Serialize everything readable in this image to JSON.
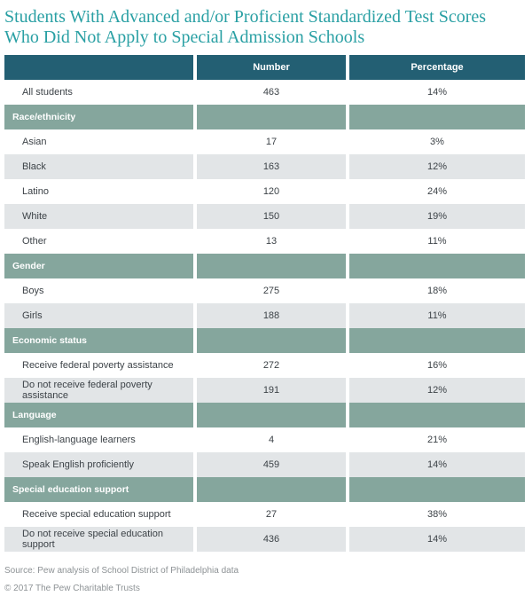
{
  "title_lines": [
    "Students With Advanced and/or Proficient Standardized Test Scores",
    "Who Did Not Apply to Special Admission Schools"
  ],
  "title": "Students With Advanced and/or Proficient Standardized Test Scores Who Did Not Apply to Special Admission Schools",
  "colors": {
    "title_teal": "#2aa0a4",
    "header_bg": "#235f73",
    "section_bg": "#85a69d",
    "alt_row_bg": "#e2e5e7",
    "body_text": "#3c4247",
    "footer_text": "#8d9295"
  },
  "table": {
    "columns": [
      "Number",
      "Percentage"
    ],
    "rows": [
      {
        "type": "data",
        "label": "All students",
        "number": "463",
        "percentage": "14%"
      },
      {
        "type": "section",
        "label": "Race/ethnicity",
        "number": "",
        "percentage": ""
      },
      {
        "type": "data",
        "label": "Asian",
        "number": "17",
        "percentage": "3%"
      },
      {
        "type": "data",
        "label": "Black",
        "number": "163",
        "percentage": "12%"
      },
      {
        "type": "data",
        "label": "Latino",
        "number": "120",
        "percentage": "24%"
      },
      {
        "type": "data",
        "label": "White",
        "number": "150",
        "percentage": "19%"
      },
      {
        "type": "data",
        "label": "Other",
        "number": "13",
        "percentage": "11%"
      },
      {
        "type": "section",
        "label": "Gender",
        "number": "",
        "percentage": ""
      },
      {
        "type": "data",
        "label": "Boys",
        "number": "275",
        "percentage": "18%"
      },
      {
        "type": "data",
        "label": "Girls",
        "number": "188",
        "percentage": "11%"
      },
      {
        "type": "section",
        "label": "Economic status",
        "number": "",
        "percentage": ""
      },
      {
        "type": "data",
        "label": "Receive federal poverty assistance",
        "number": "272",
        "percentage": "16%"
      },
      {
        "type": "data",
        "label": "Do not receive federal poverty assistance",
        "number": "191",
        "percentage": "12%"
      },
      {
        "type": "section",
        "label": "Language",
        "number": "",
        "percentage": ""
      },
      {
        "type": "data",
        "label": "English-language learners",
        "number": "4",
        "percentage": "21%"
      },
      {
        "type": "data",
        "label": "Speak English proficiently",
        "number": "459",
        "percentage": "14%"
      },
      {
        "type": "section",
        "label": "Special education support",
        "number": "",
        "percentage": ""
      },
      {
        "type": "data",
        "label": "Receive special education support",
        "number": "27",
        "percentage": "38%"
      },
      {
        "type": "data",
        "label": "Do not receive special education support",
        "number": "436",
        "percentage": "14%"
      }
    ]
  },
  "footer": {
    "source": "Source: Pew analysis of School District of Philadelphia data",
    "copyright": "© 2017 The Pew Charitable Trusts"
  },
  "chart_data": {
    "type": "table",
    "title": "Students With Advanced and/or Proficient Standardized Test Scores Who Did Not Apply to Special Admission Schools",
    "columns": [
      "Number",
      "Percentage"
    ],
    "groups": [
      {
        "name": "",
        "items": [
          {
            "label": "All students",
            "number": 463,
            "percentage_pct": 14
          }
        ]
      },
      {
        "name": "Race/ethnicity",
        "items": [
          {
            "label": "Asian",
            "number": 17,
            "percentage_pct": 3
          },
          {
            "label": "Black",
            "number": 163,
            "percentage_pct": 12
          },
          {
            "label": "Latino",
            "number": 120,
            "percentage_pct": 24
          },
          {
            "label": "White",
            "number": 150,
            "percentage_pct": 19
          },
          {
            "label": "Other",
            "number": 13,
            "percentage_pct": 11
          }
        ]
      },
      {
        "name": "Gender",
        "items": [
          {
            "label": "Boys",
            "number": 275,
            "percentage_pct": 18
          },
          {
            "label": "Girls",
            "number": 188,
            "percentage_pct": 11
          }
        ]
      },
      {
        "name": "Economic status",
        "items": [
          {
            "label": "Receive federal poverty assistance",
            "number": 272,
            "percentage_pct": 16
          },
          {
            "label": "Do not receive federal poverty assistance",
            "number": 191,
            "percentage_pct": 12
          }
        ]
      },
      {
        "name": "Language",
        "items": [
          {
            "label": "English-language learners",
            "number": 4,
            "percentage_pct": 21
          },
          {
            "label": "Speak English proficiently",
            "number": 459,
            "percentage_pct": 14
          }
        ]
      },
      {
        "name": "Special education support",
        "items": [
          {
            "label": "Receive special education support",
            "number": 27,
            "percentage_pct": 38
          },
          {
            "label": "Do not receive special education support",
            "number": 436,
            "percentage_pct": 14
          }
        ]
      }
    ],
    "source": "Source: Pew analysis of School District of Philadelphia data",
    "copyright": "© 2017 The Pew Charitable Trusts"
  }
}
